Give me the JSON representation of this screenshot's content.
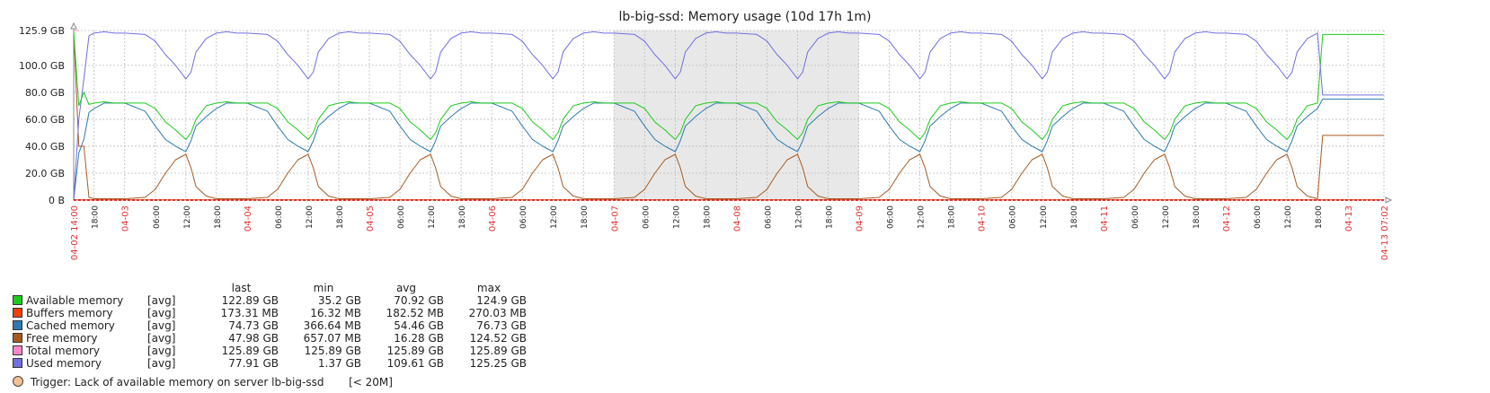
{
  "chart_data": {
    "type": "line",
    "title": "lb-big-ssd: Memory usage (10d 17h 1m)",
    "y_unit": "GB",
    "ylim": [
      0,
      125.9
    ],
    "y_ticks": [
      {
        "value": 0,
        "label": "0 B"
      },
      {
        "value": 20,
        "label": "20.0 GB"
      },
      {
        "value": 40,
        "label": "40.0 GB"
      },
      {
        "value": 60,
        "label": "60.0 GB"
      },
      {
        "value": 80,
        "label": "80.0 GB"
      },
      {
        "value": 100,
        "label": "100.0 GB"
      },
      {
        "value": 125.9,
        "label": "125.9 GB"
      }
    ],
    "x_range_hours": [
      0,
      257.03
    ],
    "x_ticks": [
      {
        "h": 0,
        "label": "04-02 14:00",
        "red": true
      },
      {
        "h": 4,
        "label": "18:00",
        "red": false
      },
      {
        "h": 10,
        "label": "04-03",
        "red": true
      },
      {
        "h": 16,
        "label": "06:00",
        "red": false
      },
      {
        "h": 22,
        "label": "12:00",
        "red": false
      },
      {
        "h": 28,
        "label": "18:00",
        "red": false
      },
      {
        "h": 34,
        "label": "04-04",
        "red": true
      },
      {
        "h": 40,
        "label": "06:00",
        "red": false
      },
      {
        "h": 46,
        "label": "12:00",
        "red": false
      },
      {
        "h": 52,
        "label": "18:00",
        "red": false
      },
      {
        "h": 58,
        "label": "04-05",
        "red": true
      },
      {
        "h": 64,
        "label": "06:00",
        "red": false
      },
      {
        "h": 70,
        "label": "12:00",
        "red": false
      },
      {
        "h": 76,
        "label": "18:00",
        "red": false
      },
      {
        "h": 82,
        "label": "04-06",
        "red": true
      },
      {
        "h": 88,
        "label": "06:00",
        "red": false
      },
      {
        "h": 94,
        "label": "12:00",
        "red": false
      },
      {
        "h": 100,
        "label": "18:00",
        "red": false
      },
      {
        "h": 106,
        "label": "04-07",
        "red": true
      },
      {
        "h": 112,
        "label": "06:00",
        "red": false
      },
      {
        "h": 118,
        "label": "12:00",
        "red": false
      },
      {
        "h": 124,
        "label": "18:00",
        "red": false
      },
      {
        "h": 130,
        "label": "04-08",
        "red": true
      },
      {
        "h": 136,
        "label": "06:00",
        "red": false
      },
      {
        "h": 142,
        "label": "12:00",
        "red": false
      },
      {
        "h": 148,
        "label": "18:00",
        "red": false
      },
      {
        "h": 154,
        "label": "04-09",
        "red": true
      },
      {
        "h": 160,
        "label": "06:00",
        "red": false
      },
      {
        "h": 166,
        "label": "12:00",
        "red": false
      },
      {
        "h": 172,
        "label": "18:00",
        "red": false
      },
      {
        "h": 178,
        "label": "04-10",
        "red": true
      },
      {
        "h": 184,
        "label": "06:00",
        "red": false
      },
      {
        "h": 190,
        "label": "12:00",
        "red": false
      },
      {
        "h": 196,
        "label": "18:00",
        "red": false
      },
      {
        "h": 202,
        "label": "04-11",
        "red": true
      },
      {
        "h": 208,
        "label": "06:00",
        "red": false
      },
      {
        "h": 214,
        "label": "12:00",
        "red": false
      },
      {
        "h": 220,
        "label": "18:00",
        "red": false
      },
      {
        "h": 226,
        "label": "04-12",
        "red": true
      },
      {
        "h": 232,
        "label": "06:00",
        "red": false
      },
      {
        "h": 238,
        "label": "12:00",
        "red": false
      },
      {
        "h": 244,
        "label": "18:00",
        "red": false
      },
      {
        "h": 250,
        "label": "04-13",
        "red": true
      },
      {
        "h": 257.03,
        "label": "04-13 07:02",
        "red": true
      }
    ],
    "shaded_range_hours": [
      106,
      154
    ],
    "grid": true,
    "colors": {
      "red_label": "#e03030",
      "shade": "#e8e8e8",
      "grid": "#bbbbbb",
      "trigger_line": "#cc0000"
    },
    "series": [
      {
        "name": "Available memory",
        "color": "#1ccc1c",
        "function": "[avg]",
        "last": "122.89 GB",
        "min": "35.2 GB",
        "avg": "70.92 GB",
        "max": "124.9 GB"
      },
      {
        "name": "Buffers memory",
        "color": "#f04010",
        "function": "[avg]",
        "last": "173.31 MB",
        "min": "16.32 MB",
        "avg": "182.52 MB",
        "max": "270.03 MB"
      },
      {
        "name": "Cached memory",
        "color": "#2e7ab0",
        "function": "[avg]",
        "last": "74.73 GB",
        "min": "366.64 MB",
        "avg": "54.46 GB",
        "max": "76.73 GB"
      },
      {
        "name": "Free memory",
        "color": "#a65a22",
        "function": "[avg]",
        "last": "47.98 GB",
        "min": "657.07 MB",
        "avg": "16.28 GB",
        "max": "124.52 GB"
      },
      {
        "name": "Total memory",
        "color": "#ff88c8",
        "function": "[avg]",
        "last": "125.89 GB",
        "min": "125.89 GB",
        "avg": "125.89 GB",
        "max": "125.89 GB"
      },
      {
        "name": "Used memory",
        "color": "#7070e0",
        "function": "[avg]",
        "last": "77.91 GB",
        "min": "1.37 GB",
        "avg": "109.61 GB",
        "max": "125.25 GB"
      }
    ],
    "daily_pattern_hours": [
      0,
      4,
      6,
      8,
      10,
      12,
      13,
      14,
      16,
      18,
      20,
      22
    ],
    "used_daily": [
      124,
      123,
      118,
      108,
      100,
      90,
      95,
      110,
      120,
      124,
      125,
      124
    ],
    "available_daily": [
      72,
      72,
      68,
      58,
      52,
      45,
      50,
      60,
      70,
      72,
      73,
      72
    ],
    "cached_daily": [
      72,
      66,
      55,
      45,
      40,
      36,
      44,
      55,
      62,
      68,
      72,
      72
    ],
    "free_daily": [
      1,
      2,
      8,
      20,
      30,
      34,
      24,
      10,
      3,
      1,
      1,
      1
    ],
    "tail": {
      "from_h": 244.5,
      "available": 123,
      "used": 78,
      "cached": 75,
      "free": 48
    },
    "head": {
      "available": [
        125,
        70,
        80
      ],
      "used": [
        0,
        60,
        90
      ],
      "cached": [
        0,
        35,
        45
      ],
      "free": [
        125,
        40,
        40
      ]
    },
    "legend_headers": {
      "last": "last",
      "min": "min",
      "avg": "avg",
      "max": "max"
    }
  },
  "trigger": {
    "label": "Trigger: Lack of available memory on server lb-big-ssd",
    "condition": "[< 20M]",
    "color": "#f5c090"
  }
}
